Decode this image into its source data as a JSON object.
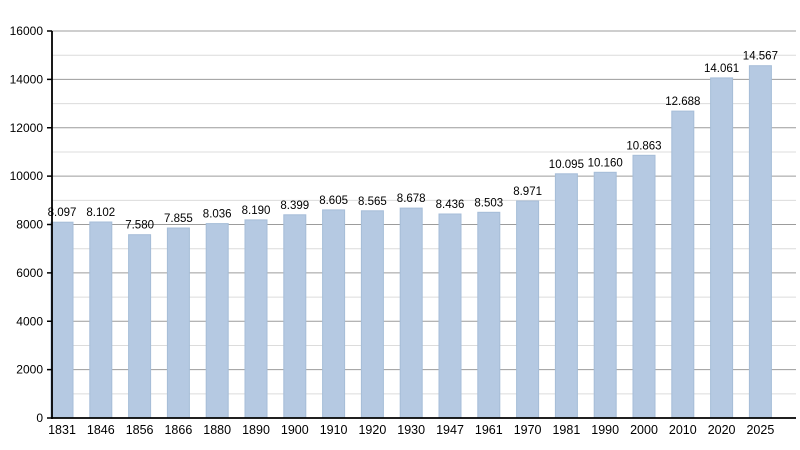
{
  "chart_data": {
    "type": "bar",
    "title": "",
    "xlabel": "",
    "ylabel": "",
    "categories": [
      "1831",
      "1846",
      "1856",
      "1866",
      "1880",
      "1890",
      "1900",
      "1910",
      "1920",
      "1930",
      "1947",
      "1961",
      "1970",
      "1981",
      "1990",
      "2000",
      "2010",
      "2020",
      "2025"
    ],
    "values": [
      8097,
      8102,
      7580,
      7855,
      8036,
      8190,
      8399,
      8605,
      8565,
      8678,
      8436,
      8503,
      8971,
      10095,
      10160,
      10863,
      12688,
      14061,
      14567
    ],
    "value_labels": [
      "8.097",
      "8.102",
      "7.580",
      "7.855",
      "8.036",
      "8.190",
      "8.399",
      "8.605",
      "8.565",
      "8.678",
      "8.436",
      "8.503",
      "8.971",
      "10.095",
      "10.160",
      "10.863",
      "12.688",
      "14.061",
      "14.567"
    ],
    "ylim": [
      0,
      16000
    ],
    "y_major_step": 2000,
    "y_minor_step": 1000,
    "y_tick_labels": [
      "0",
      "2000",
      "4000",
      "6000",
      "8000",
      "10000",
      "12000",
      "14000",
      "16000"
    ],
    "grid": true,
    "legend": "none",
    "colors": {
      "bar_fill": "#b5c9e2",
      "bar_border": "#a6bdd8",
      "major_grid": "#9c9c9c",
      "minor_grid": "#dcdcdc",
      "axis": "#000000",
      "text": "#000000",
      "background": "#ffffff"
    }
  }
}
